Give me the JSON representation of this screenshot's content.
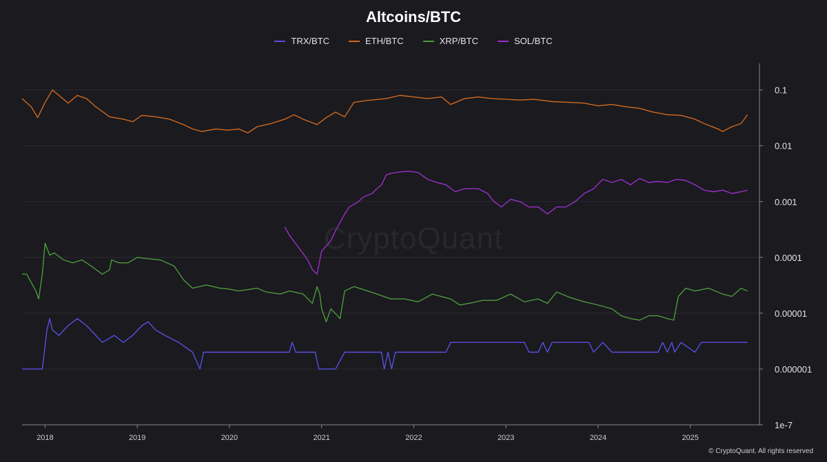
{
  "footer": "© CryptoQuant. All rights reserved",
  "watermark": "CryptoQuant",
  "chart_data": {
    "type": "line",
    "title": "Altcoins/BTC",
    "yscale": "log",
    "ylim": [
      1e-07,
      0.3
    ],
    "xlim": [
      2017.75,
      2025.75
    ],
    "y_ticks": [
      {
        "value": 0.1,
        "label": "0.1"
      },
      {
        "value": 0.01,
        "label": "0.01"
      },
      {
        "value": 0.001,
        "label": "0.001"
      },
      {
        "value": 0.0001,
        "label": "0.0001"
      },
      {
        "value": 1e-05,
        "label": "0.00001"
      },
      {
        "value": 1e-06,
        "label": "0.000001"
      },
      {
        "value": 1e-07,
        "label": "1e-7"
      }
    ],
    "x_ticks": [
      {
        "value": 2018,
        "label": "2018"
      },
      {
        "value": 2019,
        "label": "2019"
      },
      {
        "value": 2020,
        "label": "2020"
      },
      {
        "value": 2021,
        "label": "2021"
      },
      {
        "value": 2022,
        "label": "2022"
      },
      {
        "value": 2023,
        "label": "2023"
      },
      {
        "value": 2024,
        "label": "2024"
      },
      {
        "value": 2025,
        "label": "2025"
      }
    ],
    "legend_position": "top-center",
    "grid": true,
    "series": [
      {
        "name": "TRX/BTC",
        "color": "#5b4fe0",
        "points": [
          [
            2017.75,
            1e-06
          ],
          [
            2017.97,
            1e-06
          ],
          [
            2018.02,
            5e-06
          ],
          [
            2018.05,
            8e-06
          ],
          [
            2018.08,
            5e-06
          ],
          [
            2018.15,
            4e-06
          ],
          [
            2018.25,
            6e-06
          ],
          [
            2018.35,
            8e-06
          ],
          [
            2018.45,
            6e-06
          ],
          [
            2018.55,
            4e-06
          ],
          [
            2018.62,
            3e-06
          ],
          [
            2018.75,
            4e-06
          ],
          [
            2018.85,
            3e-06
          ],
          [
            2018.95,
            4e-06
          ],
          [
            2019.05,
            6e-06
          ],
          [
            2019.12,
            7e-06
          ],
          [
            2019.2,
            5e-06
          ],
          [
            2019.3,
            4e-06
          ],
          [
            2019.45,
            3e-06
          ],
          [
            2019.6,
            2e-06
          ],
          [
            2019.68,
            1e-06
          ],
          [
            2019.72,
            2e-06
          ],
          [
            2020.0,
            2e-06
          ],
          [
            2020.5,
            2e-06
          ],
          [
            2020.65,
            2e-06
          ],
          [
            2020.68,
            3e-06
          ],
          [
            2020.72,
            2e-06
          ],
          [
            2020.93,
            2e-06
          ],
          [
            2020.97,
            1e-06
          ],
          [
            2021.15,
            1e-06
          ],
          [
            2021.25,
            2e-06
          ],
          [
            2021.5,
            2e-06
          ],
          [
            2021.65,
            2e-06
          ],
          [
            2021.68,
            1e-06
          ],
          [
            2021.72,
            2e-06
          ],
          [
            2021.76,
            1e-06
          ],
          [
            2021.8,
            2e-06
          ],
          [
            2022.2,
            2e-06
          ],
          [
            2022.35,
            2e-06
          ],
          [
            2022.4,
            3e-06
          ],
          [
            2023.2,
            3e-06
          ],
          [
            2023.25,
            2e-06
          ],
          [
            2023.35,
            2e-06
          ],
          [
            2023.4,
            3e-06
          ],
          [
            2023.45,
            2e-06
          ],
          [
            2023.5,
            3e-06
          ],
          [
            2023.9,
            3e-06
          ],
          [
            2023.95,
            2e-06
          ],
          [
            2024.05,
            3e-06
          ],
          [
            2024.15,
            2e-06
          ],
          [
            2024.65,
            2e-06
          ],
          [
            2024.7,
            3e-06
          ],
          [
            2024.75,
            2e-06
          ],
          [
            2024.8,
            3e-06
          ],
          [
            2024.83,
            2e-06
          ],
          [
            2024.9,
            3e-06
          ],
          [
            2025.05,
            2e-06
          ],
          [
            2025.12,
            3e-06
          ],
          [
            2025.62,
            3e-06
          ]
        ]
      },
      {
        "name": "ETH/BTC",
        "color": "#d2691e",
        "points": [
          [
            2017.75,
            0.07
          ],
          [
            2017.85,
            0.05
          ],
          [
            2017.92,
            0.032
          ],
          [
            2018.0,
            0.06
          ],
          [
            2018.08,
            0.1
          ],
          [
            2018.15,
            0.08
          ],
          [
            2018.25,
            0.058
          ],
          [
            2018.35,
            0.08
          ],
          [
            2018.45,
            0.07
          ],
          [
            2018.55,
            0.05
          ],
          [
            2018.7,
            0.033
          ],
          [
            2018.85,
            0.03
          ],
          [
            2018.95,
            0.027
          ],
          [
            2019.05,
            0.035
          ],
          [
            2019.2,
            0.033
          ],
          [
            2019.35,
            0.03
          ],
          [
            2019.5,
            0.024
          ],
          [
            2019.6,
            0.02
          ],
          [
            2019.7,
            0.018
          ],
          [
            2019.85,
            0.02
          ],
          [
            2019.98,
            0.019
          ],
          [
            2020.1,
            0.02
          ],
          [
            2020.2,
            0.017
          ],
          [
            2020.3,
            0.022
          ],
          [
            2020.45,
            0.025
          ],
          [
            2020.6,
            0.03
          ],
          [
            2020.7,
            0.036
          ],
          [
            2020.8,
            0.03
          ],
          [
            2020.95,
            0.024
          ],
          [
            2021.05,
            0.032
          ],
          [
            2021.15,
            0.04
          ],
          [
            2021.25,
            0.033
          ],
          [
            2021.35,
            0.06
          ],
          [
            2021.5,
            0.065
          ],
          [
            2021.7,
            0.07
          ],
          [
            2021.85,
            0.08
          ],
          [
            2022.0,
            0.075
          ],
          [
            2022.15,
            0.07
          ],
          [
            2022.3,
            0.075
          ],
          [
            2022.4,
            0.055
          ],
          [
            2022.55,
            0.07
          ],
          [
            2022.7,
            0.075
          ],
          [
            2022.85,
            0.07
          ],
          [
            2023.0,
            0.068
          ],
          [
            2023.15,
            0.066
          ],
          [
            2023.3,
            0.068
          ],
          [
            2023.5,
            0.062
          ],
          [
            2023.7,
            0.06
          ],
          [
            2023.85,
            0.058
          ],
          [
            2024.0,
            0.052
          ],
          [
            2024.15,
            0.055
          ],
          [
            2024.3,
            0.05
          ],
          [
            2024.45,
            0.047
          ],
          [
            2024.6,
            0.04
          ],
          [
            2024.75,
            0.036
          ],
          [
            2024.9,
            0.035
          ],
          [
            2025.05,
            0.03
          ],
          [
            2025.15,
            0.025
          ],
          [
            2025.3,
            0.02
          ],
          [
            2025.35,
            0.018
          ],
          [
            2025.45,
            0.022
          ],
          [
            2025.55,
            0.025
          ],
          [
            2025.62,
            0.036
          ]
        ]
      },
      {
        "name": "XRP/BTC",
        "color": "#4e9a3c",
        "points": [
          [
            2017.75,
            5e-05
          ],
          [
            2017.8,
            5e-05
          ],
          [
            2017.9,
            2.5e-05
          ],
          [
            2017.93,
            1.8e-05
          ],
          [
            2017.97,
            5e-05
          ],
          [
            2018.0,
            0.00018
          ],
          [
            2018.05,
            0.00011
          ],
          [
            2018.1,
            0.00012
          ],
          [
            2018.2,
            9e-05
          ],
          [
            2018.3,
            8e-05
          ],
          [
            2018.4,
            9e-05
          ],
          [
            2018.5,
            7e-05
          ],
          [
            2018.62,
            5e-05
          ],
          [
            2018.7,
            6e-05
          ],
          [
            2018.72,
            9e-05
          ],
          [
            2018.8,
            8e-05
          ],
          [
            2018.9,
            8e-05
          ],
          [
            2019.0,
            0.0001
          ],
          [
            2019.1,
            9.5e-05
          ],
          [
            2019.25,
            9e-05
          ],
          [
            2019.4,
            7e-05
          ],
          [
            2019.5,
            4e-05
          ],
          [
            2019.6,
            2.8e-05
          ],
          [
            2019.75,
            3.2e-05
          ],
          [
            2019.9,
            2.8e-05
          ],
          [
            2020.0,
            2.7e-05
          ],
          [
            2020.1,
            2.5e-05
          ],
          [
            2020.3,
            2.8e-05
          ],
          [
            2020.4,
            2.4e-05
          ],
          [
            2020.55,
            2.2e-05
          ],
          [
            2020.65,
            2.5e-05
          ],
          [
            2020.8,
            2.2e-05
          ],
          [
            2020.9,
            1.5e-05
          ],
          [
            2020.95,
            3e-05
          ],
          [
            2020.98,
            2.2e-05
          ],
          [
            2021.0,
            1.2e-05
          ],
          [
            2021.05,
            7e-06
          ],
          [
            2021.1,
            1.2e-05
          ],
          [
            2021.2,
            8e-06
          ],
          [
            2021.25,
            2.5e-05
          ],
          [
            2021.35,
            3e-05
          ],
          [
            2021.5,
            2.5e-05
          ],
          [
            2021.6,
            2.2e-05
          ],
          [
            2021.75,
            1.8e-05
          ],
          [
            2021.9,
            1.8e-05
          ],
          [
            2022.05,
            1.6e-05
          ],
          [
            2022.2,
            2.2e-05
          ],
          [
            2022.4,
            1.8e-05
          ],
          [
            2022.5,
            1.4e-05
          ],
          [
            2022.6,
            1.5e-05
          ],
          [
            2022.75,
            1.7e-05
          ],
          [
            2022.9,
            1.7e-05
          ],
          [
            2023.05,
            2.2e-05
          ],
          [
            2023.2,
            1.6e-05
          ],
          [
            2023.35,
            1.8e-05
          ],
          [
            2023.45,
            1.5e-05
          ],
          [
            2023.55,
            2.4e-05
          ],
          [
            2023.7,
            1.9e-05
          ],
          [
            2023.85,
            1.6e-05
          ],
          [
            2024.0,
            1.4e-05
          ],
          [
            2024.15,
            1.2e-05
          ],
          [
            2024.25,
            9e-06
          ],
          [
            2024.35,
            8e-06
          ],
          [
            2024.45,
            7.5e-06
          ],
          [
            2024.55,
            9e-06
          ],
          [
            2024.65,
            9e-06
          ],
          [
            2024.75,
            8e-06
          ],
          [
            2024.82,
            7.5e-06
          ],
          [
            2024.87,
            2e-05
          ],
          [
            2024.95,
            2.8e-05
          ],
          [
            2025.05,
            2.5e-05
          ],
          [
            2025.2,
            2.8e-05
          ],
          [
            2025.35,
            2.2e-05
          ],
          [
            2025.45,
            2e-05
          ],
          [
            2025.55,
            2.8e-05
          ],
          [
            2025.62,
            2.5e-05
          ]
        ]
      },
      {
        "name": "SOL/BTC",
        "color": "#9b30c8",
        "points": [
          [
            2020.6,
            0.00035
          ],
          [
            2020.65,
            0.00025
          ],
          [
            2020.75,
            0.00015
          ],
          [
            2020.85,
            9e-05
          ],
          [
            2020.9,
            6e-05
          ],
          [
            2020.95,
            5e-05
          ],
          [
            2021.0,
            0.00013
          ],
          [
            2021.05,
            0.00016
          ],
          [
            2021.1,
            0.0002
          ],
          [
            2021.15,
            0.0003
          ],
          [
            2021.25,
            0.0006
          ],
          [
            2021.3,
            0.0008
          ],
          [
            2021.4,
            0.001
          ],
          [
            2021.45,
            0.0012
          ],
          [
            2021.55,
            0.0014
          ],
          [
            2021.6,
            0.0017
          ],
          [
            2021.65,
            0.002
          ],
          [
            2021.7,
            0.003
          ],
          [
            2021.75,
            0.0032
          ],
          [
            2021.85,
            0.0034
          ],
          [
            2021.95,
            0.0035
          ],
          [
            2022.05,
            0.0033
          ],
          [
            2022.15,
            0.0025
          ],
          [
            2022.25,
            0.0022
          ],
          [
            2022.35,
            0.002
          ],
          [
            2022.45,
            0.0015
          ],
          [
            2022.55,
            0.0017
          ],
          [
            2022.7,
            0.0017
          ],
          [
            2022.8,
            0.0014
          ],
          [
            2022.87,
            0.001
          ],
          [
            2022.95,
            0.0008
          ],
          [
            2023.05,
            0.0011
          ],
          [
            2023.15,
            0.001
          ],
          [
            2023.25,
            0.0008
          ],
          [
            2023.35,
            0.0008
          ],
          [
            2023.45,
            0.0006
          ],
          [
            2023.55,
            0.0008
          ],
          [
            2023.65,
            0.0008
          ],
          [
            2023.75,
            0.001
          ],
          [
            2023.85,
            0.0014
          ],
          [
            2023.95,
            0.0017
          ],
          [
            2024.05,
            0.0025
          ],
          [
            2024.15,
            0.0022
          ],
          [
            2024.25,
            0.0025
          ],
          [
            2024.35,
            0.002
          ],
          [
            2024.45,
            0.0026
          ],
          [
            2024.55,
            0.0022
          ],
          [
            2024.65,
            0.0023
          ],
          [
            2024.75,
            0.0022
          ],
          [
            2024.85,
            0.0025
          ],
          [
            2024.95,
            0.0024
          ],
          [
            2025.05,
            0.002
          ],
          [
            2025.15,
            0.0016
          ],
          [
            2025.25,
            0.0015
          ],
          [
            2025.35,
            0.0016
          ],
          [
            2025.45,
            0.0014
          ],
          [
            2025.55,
            0.0015
          ],
          [
            2025.62,
            0.0016
          ]
        ]
      }
    ]
  }
}
